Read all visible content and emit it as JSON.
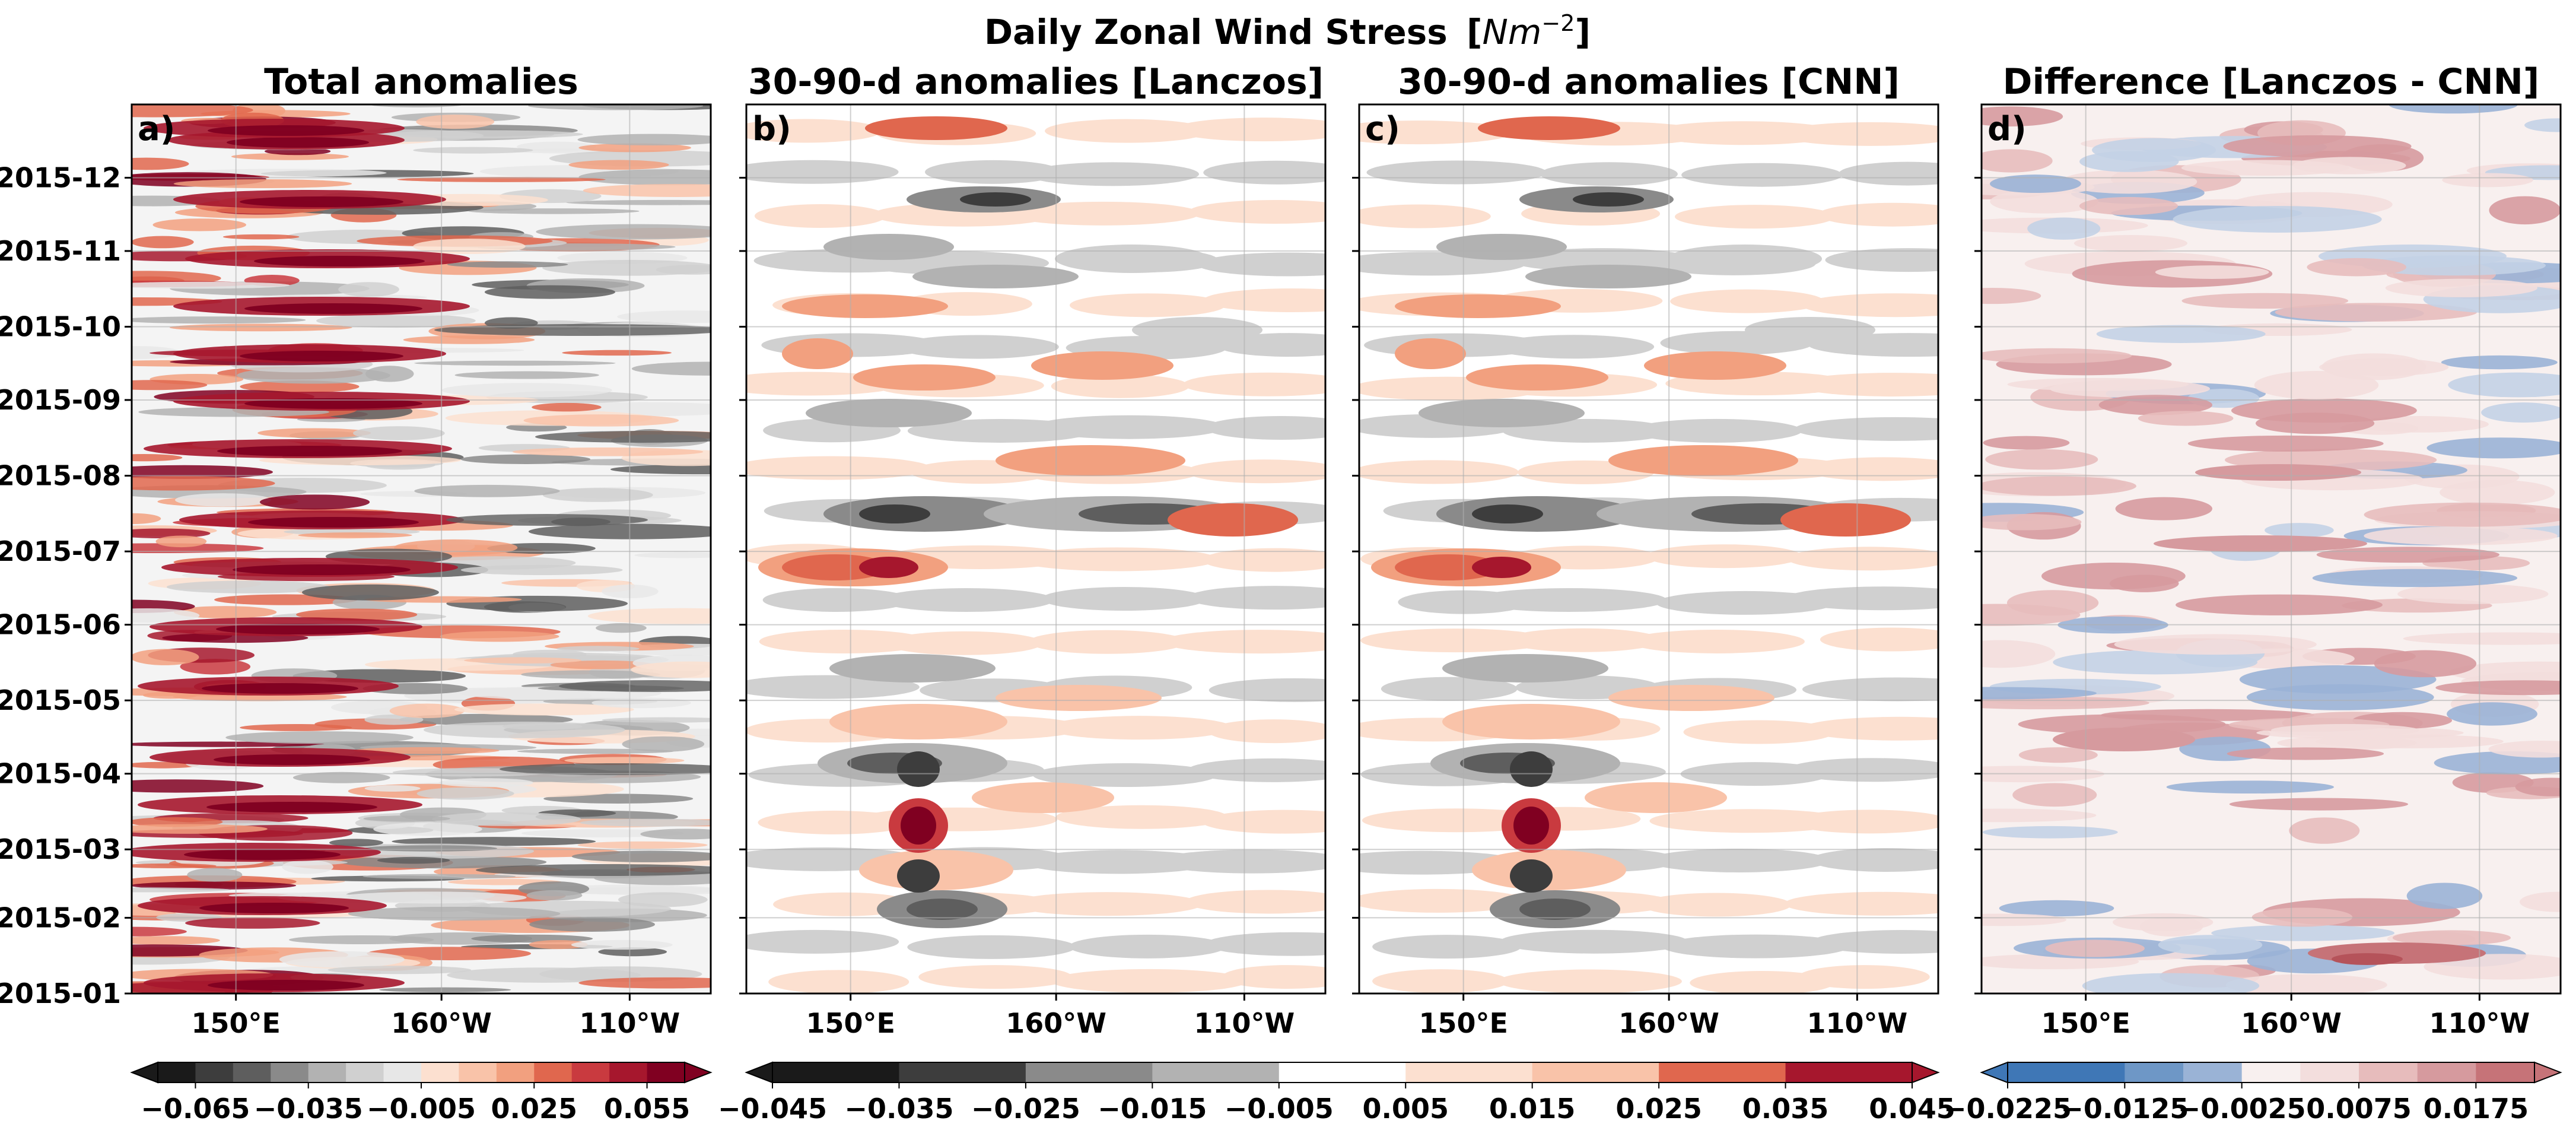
{
  "figure": {
    "title": "Daily Zonal Wind Stress",
    "unit": "Nm",
    "unit_exponent": "−2"
  },
  "palettes": {
    "gray_red": {
      "neg": [
        "#1a1a1a",
        "#3d3d3d",
        "#5e5e5e",
        "#8a8a8a",
        "#b2b2b2",
        "#d0d0d0",
        "#e7e7e7"
      ],
      "pos": [
        "#fce0d0",
        "#f9c3a9",
        "#f2a07f",
        "#e0674e",
        "#c93a3f",
        "#a6172d",
        "#800021"
      ],
      "mid": "#ffffff"
    },
    "blue_red": {
      "neg": [
        "#3f77b6",
        "#6e97c6",
        "#9ab3d6",
        "#c3d1e5"
      ],
      "pos": [
        "#f3dedd",
        "#e7bcbc",
        "#d69a9e",
        "#c67378",
        "#b5535a"
      ],
      "mid": "#f8f0ef"
    }
  },
  "chart_data": [
    {
      "id": "a",
      "type": "heatmap",
      "label": "a)",
      "title": "Total anomalies",
      "x_ticks": [
        "150°E",
        "160°W",
        "110°W"
      ],
      "y_ticks": [
        "2015-01",
        "2015-02",
        "2015-03",
        "2015-04",
        "2015-05",
        "2015-06",
        "2015-07",
        "2015-08",
        "2015-09",
        "2015-10",
        "2015-11",
        "2015-12"
      ],
      "time_range": [
        "2015-01-01",
        "2015-12-31"
      ],
      "colorbar": {
        "ticks": [
          "−0.065",
          "−0.035",
          "−0.005",
          "0.025",
          "0.055"
        ],
        "range": [
          -0.075,
          0.065
        ],
        "step": 0.01,
        "extend": "both",
        "palette": "gray_red"
      }
    },
    {
      "id": "b",
      "type": "heatmap",
      "label": "b)",
      "title": "30-90-d anomalies [Lanczos]",
      "x_ticks": [
        "150°E",
        "160°W",
        "110°W"
      ],
      "time_range": [
        "2015-01-01",
        "2015-12-31"
      ]
    },
    {
      "id": "c",
      "type": "heatmap",
      "label": "c)",
      "title": "30-90-d anomalies [CNN]",
      "x_ticks": [
        "150°E",
        "160°W",
        "110°W"
      ],
      "time_range": [
        "2015-01-01",
        "2015-12-31"
      ],
      "colorbar_shared_with": [
        "b",
        "c"
      ],
      "colorbar": {
        "ticks": [
          "−0.045",
          "−0.035",
          "−0.025",
          "−0.015",
          "−0.005",
          "0.005",
          "0.015",
          "0.025",
          "0.035",
          "0.045"
        ],
        "range": [
          -0.045,
          0.045
        ],
        "step": 0.01,
        "extend": "both",
        "palette": "gray_red"
      }
    },
    {
      "id": "d",
      "type": "heatmap",
      "label": "d)",
      "title": "Difference [Lanczos - CNN]",
      "x_ticks": [
        "150°E",
        "160°W",
        "110°W"
      ],
      "time_range": [
        "2015-01-01",
        "2015-12-31"
      ],
      "colorbar": {
        "ticks": [
          "−0.0225",
          "−0.0125",
          "−0.0025",
          "0.0075",
          "0.0175"
        ],
        "range": [
          -0.0225,
          0.0225
        ],
        "step": 0.005,
        "extend": "both",
        "palette": "blue_red"
      }
    }
  ]
}
